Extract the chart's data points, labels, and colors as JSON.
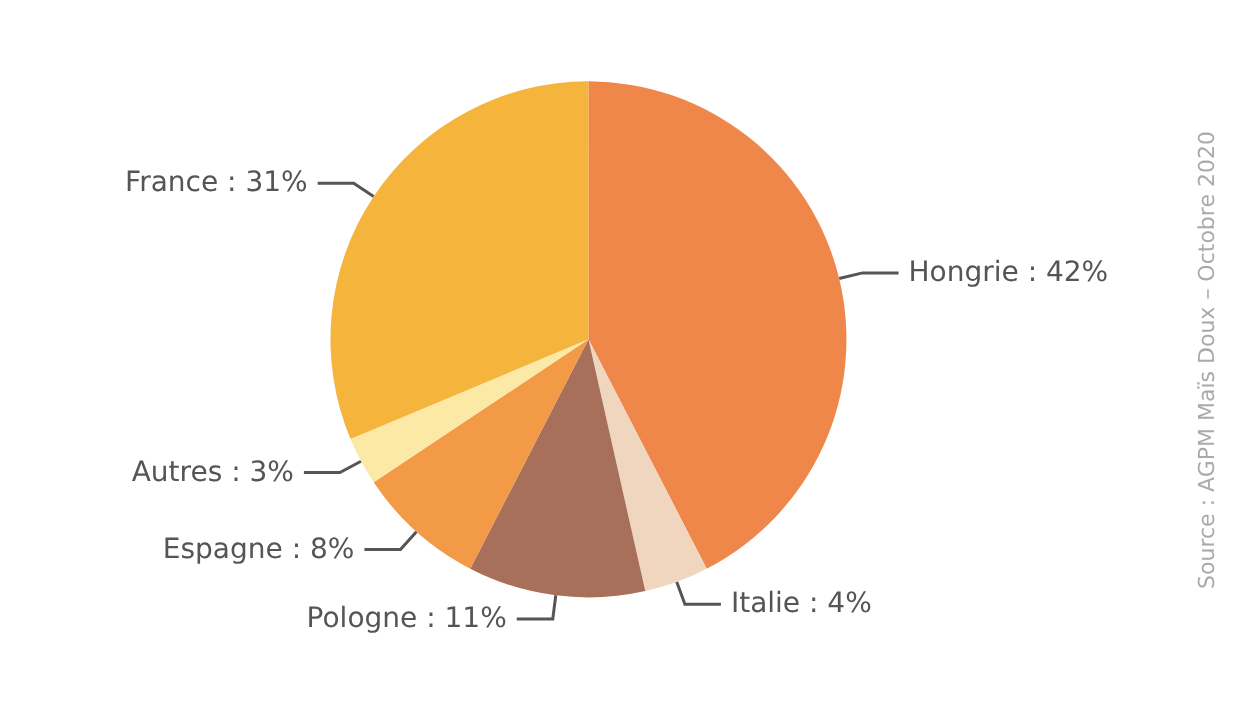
{
  "chart_data": {
    "type": "pie",
    "categories": [
      "Hongrie",
      "Italie",
      "Pologne",
      "Espagne",
      "Autres",
      "France"
    ],
    "values": [
      42,
      4,
      11,
      8,
      3,
      31
    ],
    "colors": [
      "#f0874a",
      "#f0d6bf",
      "#a8705a",
      "#f29a45",
      "#fde9a6",
      "#f5b43c"
    ],
    "value_labels": [
      "42%",
      "4%",
      "11%",
      "8%",
      "3%",
      "31%"
    ],
    "legend": false,
    "annotations": [
      "Source : AGPM Maïs Doux – Octobre 2020"
    ]
  }
}
